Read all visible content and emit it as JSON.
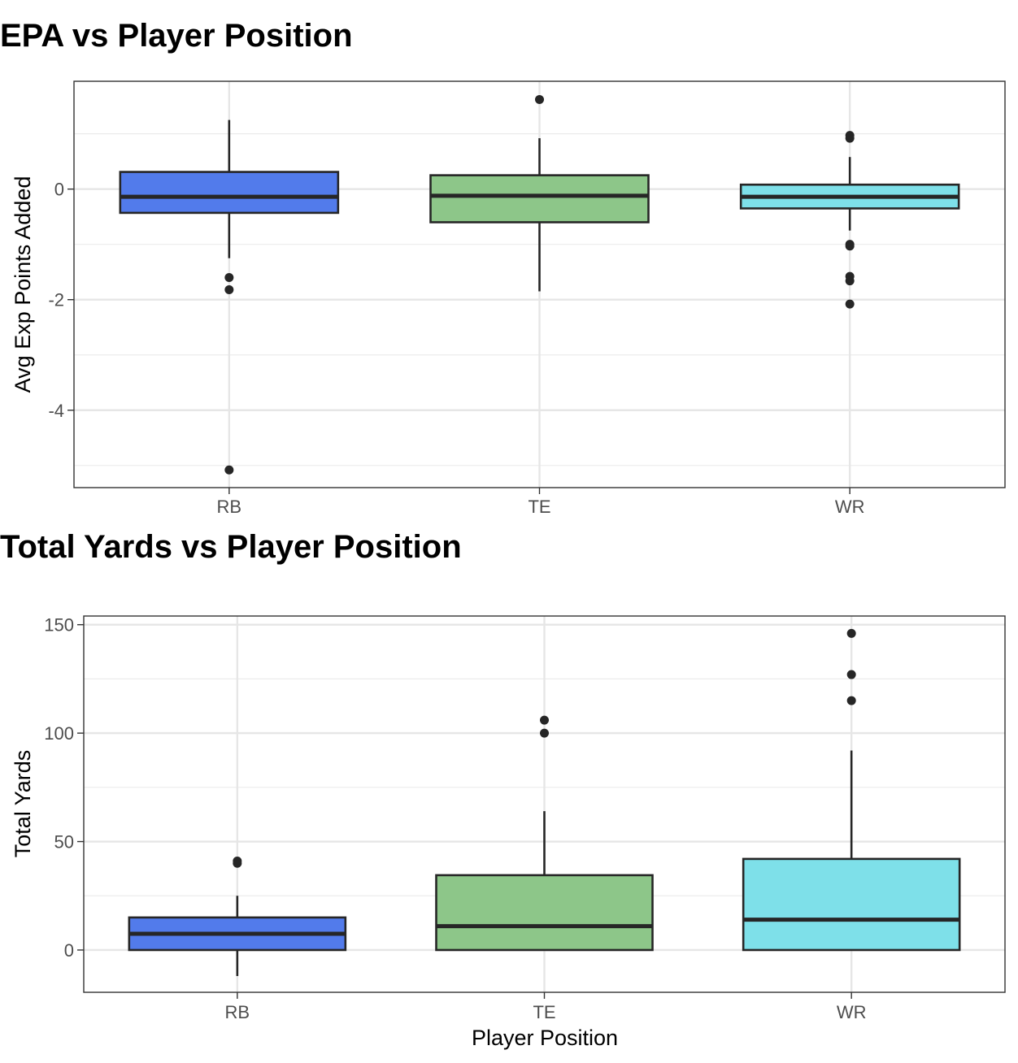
{
  "chart_data": [
    {
      "type": "box",
      "title": "EPA vs Player Position",
      "xlabel": "",
      "ylabel": "Avg Exp Points Added",
      "categories": [
        "RB",
        "TE",
        "WR"
      ],
      "ylim": [
        -5.4,
        1.95
      ],
      "yticks": [
        0,
        -2,
        -4
      ],
      "ytick_labels": [
        "0",
        "-2",
        "-4"
      ],
      "grid": true,
      "series": [
        {
          "category": "RB",
          "color": "#527BEB",
          "whisker_low": -1.25,
          "q1": -0.43,
          "median": -0.14,
          "q3": 0.31,
          "whisker_high": 1.25,
          "outliers": [
            -1.6,
            -1.82,
            -5.08
          ]
        },
        {
          "category": "TE",
          "color": "#8DC689",
          "whisker_low": -1.85,
          "q1": -0.6,
          "median": -0.12,
          "q3": 0.25,
          "whisker_high": 0.92,
          "outliers": [
            1.62
          ]
        },
        {
          "category": "WR",
          "color": "#7EE0E9",
          "whisker_low": -0.75,
          "q1": -0.35,
          "median": -0.14,
          "q3": 0.08,
          "whisker_high": 0.58,
          "outliers": [
            0.97,
            0.92,
            -1.0,
            -1.03,
            -1.58,
            -1.66,
            -2.08
          ]
        }
      ]
    },
    {
      "type": "box",
      "title": "Total Yards vs Player Position",
      "xlabel": "Player Position",
      "ylabel": "Total Yards",
      "categories": [
        "RB",
        "TE",
        "WR"
      ],
      "ylim": [
        -19.5,
        154
      ],
      "yticks": [
        0,
        50,
        100,
        150
      ],
      "ytick_labels": [
        "0",
        "50",
        "100",
        "150"
      ],
      "grid": true,
      "series": [
        {
          "category": "RB",
          "color": "#527BEB",
          "whisker_low": -12,
          "q1": 0,
          "median": 7.5,
          "q3": 15,
          "whisker_high": 25,
          "outliers": [
            41,
            40
          ]
        },
        {
          "category": "TE",
          "color": "#8DC689",
          "whisker_low": 0,
          "q1": 0,
          "median": 11,
          "q3": 34.5,
          "whisker_high": 64,
          "outliers": [
            106,
            100
          ]
        },
        {
          "category": "WR",
          "color": "#7EE0E9",
          "whisker_low": 0,
          "q1": 0,
          "median": 14,
          "q3": 42,
          "whisker_high": 92,
          "outliers": [
            146,
            127,
            115
          ]
        }
      ]
    }
  ]
}
